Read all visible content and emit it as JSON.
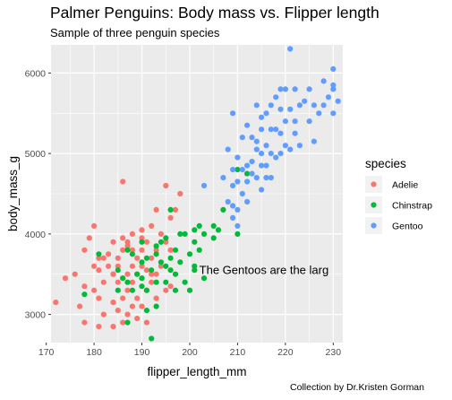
{
  "chart_data": {
    "type": "scatter",
    "title": "Palmer Penguins: Body mass vs. Flipper length",
    "subtitle": "Sample of three penguin species",
    "caption": "Collection by Dr.Kristen Gorman",
    "xlabel": "flipper_length_mm",
    "ylabel": "body_mass_g",
    "xlim": [
      171,
      232
    ],
    "ylim": [
      2650,
      6350
    ],
    "x_ticks": [
      170,
      180,
      190,
      200,
      210,
      220,
      230
    ],
    "y_ticks": [
      3000,
      4000,
      5000,
      6000
    ],
    "grid": true,
    "background": "#ebebeb",
    "legend": {
      "title": "species",
      "placement": "right"
    },
    "annotation": {
      "text": "The Gentoos are the larg",
      "x": 202,
      "y": 3500
    },
    "series": [
      {
        "name": "Adelie",
        "color": "#F8766D",
        "points": [
          [
            172,
            3150
          ],
          [
            174,
            3450
          ],
          [
            176,
            3500
          ],
          [
            177,
            3100
          ],
          [
            178,
            3800
          ],
          [
            178,
            3350
          ],
          [
            178,
            2900
          ],
          [
            179,
            3950
          ],
          [
            180,
            3600
          ],
          [
            180,
            3300
          ],
          [
            181,
            3200
          ],
          [
            181,
            2850
          ],
          [
            181,
            3700
          ],
          [
            182,
            3400
          ],
          [
            182,
            3000
          ],
          [
            183,
            3600
          ],
          [
            183,
            3750
          ],
          [
            184,
            3150
          ],
          [
            184,
            3900
          ],
          [
            184,
            3500
          ],
          [
            184,
            2850
          ],
          [
            185,
            3700
          ],
          [
            185,
            3400
          ],
          [
            185,
            3050
          ],
          [
            185,
            3600
          ],
          [
            186,
            3800
          ],
          [
            186,
            3200
          ],
          [
            186,
            2900
          ],
          [
            186,
            3450
          ],
          [
            187,
            3500
          ],
          [
            187,
            3900
          ],
          [
            187,
            3000
          ],
          [
            187,
            3300
          ],
          [
            188,
            3600
          ],
          [
            188,
            3400
          ],
          [
            188,
            3100
          ],
          [
            188,
            3800
          ],
          [
            189,
            3500
          ],
          [
            189,
            3700
          ],
          [
            189,
            3200
          ],
          [
            189,
            2950
          ],
          [
            190,
            3800
          ],
          [
            190,
            3450
          ],
          [
            190,
            3600
          ],
          [
            190,
            3100
          ],
          [
            190,
            4050
          ],
          [
            191,
            3550
          ],
          [
            191,
            3900
          ],
          [
            191,
            3300
          ],
          [
            192,
            3400
          ],
          [
            192,
            3700
          ],
          [
            192,
            4100
          ],
          [
            193,
            3500
          ],
          [
            193,
            3800
          ],
          [
            193,
            3200
          ],
          [
            194,
            3600
          ],
          [
            194,
            4000
          ],
          [
            195,
            3900
          ],
          [
            195,
            3300
          ],
          [
            196,
            4200
          ],
          [
            196,
            3800
          ],
          [
            197,
            4300
          ],
          [
            198,
            4500
          ],
          [
            191,
            2900
          ],
          [
            186,
            3950
          ],
          [
            182,
            3700
          ],
          [
            193,
            4300
          ],
          [
            195,
            4600
          ],
          [
            186,
            4650
          ],
          [
            181,
            3550
          ],
          [
            188,
            4000
          ],
          [
            192,
            3500
          ],
          [
            184,
            3500
          ],
          [
            190,
            3950
          ],
          [
            187,
            3850
          ],
          [
            180,
            4100
          ],
          [
            196,
            3350
          ]
        ]
      },
      {
        "name": "Chinstrap",
        "color": "#00BA38",
        "points": [
          [
            178,
            3250
          ],
          [
            181,
            3750
          ],
          [
            185,
            3550
          ],
          [
            186,
            3450
          ],
          [
            187,
            3800
          ],
          [
            187,
            2900
          ],
          [
            188,
            3300
          ],
          [
            190,
            3650
          ],
          [
            190,
            3450
          ],
          [
            190,
            3350
          ],
          [
            190,
            3900
          ],
          [
            191,
            3700
          ],
          [
            191,
            3300
          ],
          [
            192,
            2700
          ],
          [
            192,
            3550
          ],
          [
            193,
            3750
          ],
          [
            193,
            3400
          ],
          [
            194,
            3650
          ],
          [
            195,
            3400
          ],
          [
            195,
            3950
          ],
          [
            195,
            3600
          ],
          [
            196,
            3700
          ],
          [
            196,
            3550
          ],
          [
            196,
            4300
          ],
          [
            197,
            3800
          ],
          [
            197,
            3500
          ],
          [
            198,
            3650
          ],
          [
            198,
            4000
          ],
          [
            199,
            3400
          ],
          [
            200,
            3300
          ],
          [
            200,
            3750
          ],
          [
            201,
            3550
          ],
          [
            201,
            4050
          ],
          [
            201,
            3900
          ],
          [
            202,
            3800
          ],
          [
            202,
            4100
          ],
          [
            203,
            4000
          ],
          [
            205,
            3950
          ],
          [
            206,
            4050
          ],
          [
            207,
            4300
          ],
          [
            210,
            4800
          ],
          [
            212,
            4750
          ],
          [
            194,
            3900
          ],
          [
            197,
            3300
          ],
          [
            191,
            3050
          ],
          [
            189,
            3500
          ],
          [
            188,
            3750
          ],
          [
            201,
            3600
          ],
          [
            199,
            4000
          ],
          [
            205,
            4100
          ],
          [
            193,
            3850
          ],
          [
            185,
            3300
          ],
          [
            193,
            3100
          ],
          [
            203,
            3450
          ],
          [
            187,
            3400
          ],
          [
            210,
            4000
          ]
        ]
      },
      {
        "name": "Gentoo",
        "color": "#619CFF",
        "points": [
          [
            203,
            4600
          ],
          [
            207,
            4700
          ],
          [
            208,
            4400
          ],
          [
            208,
            5050
          ],
          [
            209,
            4200
          ],
          [
            209,
            4600
          ],
          [
            209,
            5500
          ],
          [
            209,
            4800
          ],
          [
            210,
            4300
          ],
          [
            210,
            4650
          ],
          [
            210,
            4950
          ],
          [
            210,
            4100
          ],
          [
            211,
            4500
          ],
          [
            211,
            4800
          ],
          [
            211,
            5200
          ],
          [
            212,
            4400
          ],
          [
            212,
            4650
          ],
          [
            212,
            5350
          ],
          [
            213,
            4750
          ],
          [
            213,
            4900
          ],
          [
            213,
            5200
          ],
          [
            214,
            4700
          ],
          [
            214,
            5050
          ],
          [
            214,
            5600
          ],
          [
            215,
            4550
          ],
          [
            215,
            4850
          ],
          [
            215,
            5300
          ],
          [
            215,
            5450
          ],
          [
            216,
            4850
          ],
          [
            216,
            5100
          ],
          [
            216,
            5500
          ],
          [
            216,
            4700
          ],
          [
            217,
            5000
          ],
          [
            217,
            5300
          ],
          [
            217,
            5600
          ],
          [
            218,
            4950
          ],
          [
            218,
            5300
          ],
          [
            218,
            5700
          ],
          [
            219,
            5250
          ],
          [
            219,
            5550
          ],
          [
            219,
            5000
          ],
          [
            220,
            5100
          ],
          [
            220,
            5400
          ],
          [
            220,
            5800
          ],
          [
            221,
            5050
          ],
          [
            221,
            5550
          ],
          [
            221,
            6300
          ],
          [
            222,
            5250
          ],
          [
            222,
            5800
          ],
          [
            222,
            5400
          ],
          [
            223,
            5600
          ],
          [
            224,
            5650
          ],
          [
            225,
            5400
          ],
          [
            225,
            5800
          ],
          [
            226,
            5150
          ],
          [
            226,
            5600
          ],
          [
            228,
            5600
          ],
          [
            228,
            5900
          ],
          [
            229,
            5700
          ],
          [
            230,
            5800
          ],
          [
            230,
            6050
          ],
          [
            230,
            5850
          ],
          [
            230,
            5500
          ],
          [
            231,
            5650
          ],
          [
            212,
            4850
          ],
          [
            214,
            5150
          ],
          [
            217,
            4700
          ],
          [
            219,
            5800
          ],
          [
            223,
            5100
          ],
          [
            227,
            5500
          ],
          [
            209,
            4350
          ],
          [
            215,
            5000
          ]
        ]
      }
    ]
  }
}
